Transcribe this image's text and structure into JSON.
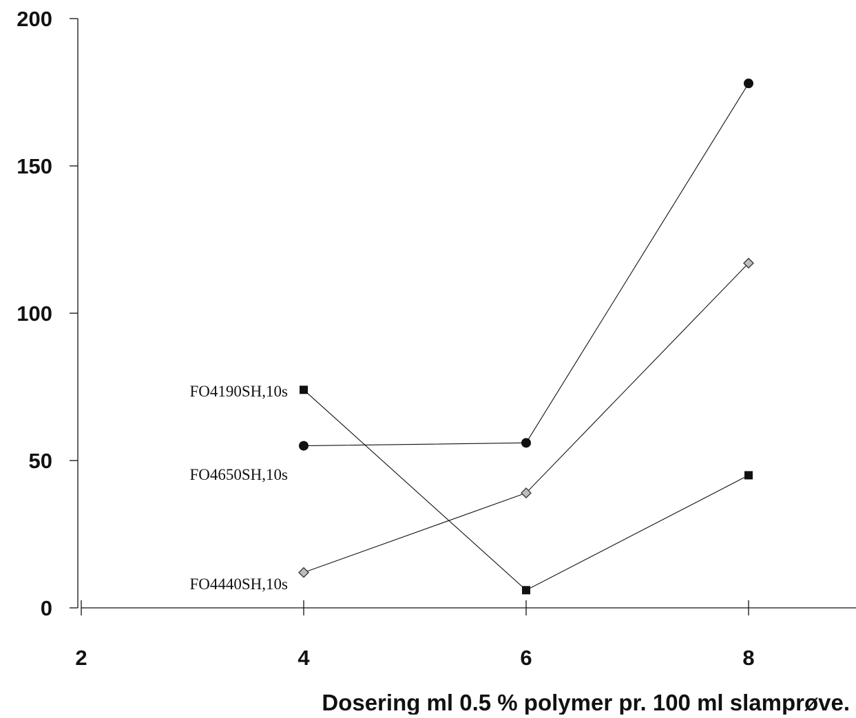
{
  "chart_data": {
    "type": "line",
    "title": "",
    "xlabel": "Dosering ml 0.5 % polymer pr. 100 ml slamprøve.",
    "ylabel": "",
    "xlim": [
      2,
      9.0
    ],
    "ylim": [
      0,
      200
    ],
    "x_ticks": [
      2,
      4,
      6,
      8
    ],
    "y_ticks": [
      0,
      50,
      100,
      150,
      200
    ],
    "grid": false,
    "legend": "inline labels at left of first data point",
    "series": [
      {
        "name": "FO4190SH,10s",
        "marker": "square",
        "x": [
          4,
          6,
          8
        ],
        "y": [
          74,
          6,
          45
        ]
      },
      {
        "name": "FO4650SH,10s",
        "marker": "circle",
        "x": [
          4,
          6,
          8
        ],
        "y": [
          55,
          56,
          178
        ]
      },
      {
        "name": "FO4440SH,10s",
        "marker": "diamond",
        "x": [
          4,
          6,
          8
        ],
        "y": [
          12,
          39,
          117
        ]
      }
    ]
  }
}
